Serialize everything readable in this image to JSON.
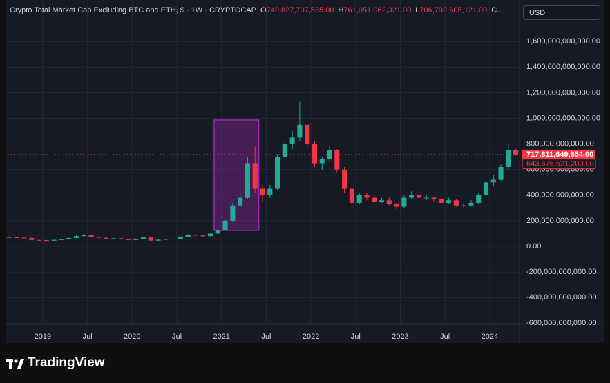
{
  "chart_data": {
    "type": "candlestick",
    "title": "Crypto Total Market Cap Excluding BTC and ETH, $ · 1W · CRYPTOCAP",
    "header_ohlc": [
      {
        "key": "O",
        "value": 749827707535,
        "label": "749,827,707,535.00"
      },
      {
        "key": "H",
        "value": 761051062321,
        "label": "761,051,062,321.00"
      },
      {
        "key": "L",
        "value": 706792605121,
        "label": "706,792,605,121.00"
      }
    ],
    "header_truncated": "C...",
    "currency": "USD",
    "x": [
      "2018-08",
      "2018-09",
      "2018-10",
      "2018-11",
      "2018-12",
      "2019-01",
      "2019-02",
      "2019-03",
      "2019-04",
      "2019-05",
      "2019-06",
      "2019-07",
      "2019-08",
      "2019-09",
      "2019-10",
      "2019-11",
      "2019-12",
      "2020-01",
      "2020-02",
      "2020-03",
      "2020-04",
      "2020-05",
      "2020-06",
      "2020-07",
      "2020-08",
      "2020-09",
      "2020-10",
      "2020-11",
      "2020-12",
      "2021-01",
      "2021-02",
      "2021-03",
      "2021-04",
      "2021-05",
      "2021-06",
      "2021-07",
      "2021-08",
      "2021-09",
      "2021-10",
      "2021-11",
      "2021-12",
      "2022-01",
      "2022-02",
      "2022-03",
      "2022-04",
      "2022-05",
      "2022-06",
      "2022-07",
      "2022-08",
      "2022-09",
      "2022-10",
      "2022-11",
      "2022-12",
      "2023-01",
      "2023-02",
      "2023-03",
      "2023-04",
      "2023-05",
      "2023-06",
      "2023-07",
      "2023-08",
      "2023-09",
      "2023-10",
      "2023-11",
      "2023-12",
      "2024-01",
      "2024-02",
      "2024-03",
      "2024-04"
    ],
    "open": [
      72000000000.0,
      70000000000.0,
      68000000000.0,
      65000000000.0,
      50000000000.0,
      48000000000.0,
      45000000000.0,
      50000000000.0,
      55000000000.0,
      65000000000.0,
      80000000000.0,
      90000000000.0,
      75000000000.0,
      68000000000.0,
      60000000000.0,
      62000000000.0,
      55000000000.0,
      50000000000.0,
      60000000000.0,
      70000000000.0,
      45000000000.0,
      52000000000.0,
      58000000000.0,
      60000000000.0,
      75000000000.0,
      90000000000.0,
      85000000000.0,
      80000000000.0,
      100000000000.0,
      125000000000.0,
      200000000000.0,
      320000000000.0,
      380000000000.0,
      650000000000.0,
      450000000000.0,
      400000000000.0,
      450000000000.0,
      700000000000.0,
      800000000000.0,
      850000000000.0,
      950000000000.0,
      800000000000.0,
      650000000000.0,
      680000000000.0,
      750000000000.0,
      600000000000.0,
      450000000000.0,
      340000000000.0,
      400000000000.0,
      380000000000.0,
      350000000000.0,
      360000000000.0,
      330000000000.0,
      310000000000.0,
      380000000000.0,
      400000000000.0,
      380000000000.0,
      380000000000.0,
      370000000000.0,
      340000000000.0,
      360000000000.0,
      320000000000.0,
      320000000000.0,
      340000000000.0,
      400000000000.0,
      500000000000.0,
      520000000000.0,
      620000000000.0,
      749827707535
    ],
    "high": [
      75000000000.0,
      72000000000.0,
      70000000000.0,
      67000000000.0,
      54000000000.0,
      50000000000.0,
      52000000000.0,
      58000000000.0,
      68000000000.0,
      85000000000.0,
      100000000000.0,
      92000000000.0,
      78000000000.0,
      70000000000.0,
      65000000000.0,
      64000000000.0,
      57000000000.0,
      62000000000.0,
      72000000000.0,
      72000000000.0,
      55000000000.0,
      60000000000.0,
      62000000000.0,
      78000000000.0,
      95000000000.0,
      92000000000.0,
      88000000000.0,
      102000000000.0,
      130000000000.0,
      210000000000.0,
      340000000000.0,
      420000000000.0,
      700000000000.0,
      780000000000.0,
      470000000000.0,
      480000000000.0,
      720000000000.0,
      830000000000.0,
      900000000000.0,
      1130000000000.0,
      960000000000.0,
      820000000000.0,
      700000000000.0,
      780000000000.0,
      760000000000.0,
      620000000000.0,
      470000000000.0,
      420000000000.0,
      420000000000.0,
      400000000000.0,
      380000000000.0,
      380000000000.0,
      340000000000.0,
      400000000000.0,
      430000000000.0,
      410000000000.0,
      400000000000.0,
      390000000000.0,
      380000000000.0,
      380000000000.0,
      370000000000.0,
      340000000000.0,
      360000000000.0,
      420000000000.0,
      520000000000.0,
      560000000000.0,
      640000000000.0,
      800000000000.0,
      761051062321
    ],
    "low": [
      68000000000.0,
      66000000000.0,
      62000000000.0,
      48000000000.0,
      45000000000.0,
      42000000000.0,
      44000000000.0,
      49000000000.0,
      54000000000.0,
      63000000000.0,
      78000000000.0,
      72000000000.0,
      65000000000.0,
      58000000000.0,
      58000000000.0,
      52000000000.0,
      48000000000.0,
      48000000000.0,
      58000000000.0,
      40000000000.0,
      42000000000.0,
      50000000000.0,
      56000000000.0,
      58000000000.0,
      74000000000.0,
      80000000000.0,
      76000000000.0,
      78000000000.0,
      98000000000.0,
      122000000000.0,
      190000000000.0,
      300000000000.0,
      370000000000.0,
      420000000000.0,
      350000000000.0,
      380000000000.0,
      440000000000.0,
      680000000000.0,
      760000000000.0,
      820000000000.0,
      760000000000.0,
      620000000000.0,
      600000000000.0,
      660000000000.0,
      580000000000.0,
      420000000000.0,
      320000000000.0,
      330000000000.0,
      360000000000.0,
      340000000000.0,
      340000000000.0,
      320000000000.0,
      290000000000.0,
      300000000000.0,
      370000000000.0,
      360000000000.0,
      360000000000.0,
      350000000000.0,
      330000000000.0,
      330000000000.0,
      310000000000.0,
      300000000000.0,
      310000000000.0,
      330000000000.0,
      390000000000.0,
      470000000000.0,
      510000000000.0,
      600000000000.0,
      706792605121
    ],
    "close": [
      70000000000.0,
      68000000000.0,
      65000000000.0,
      50000000000.0,
      48000000000.0,
      45000000000.0,
      50000000000.0,
      55000000000.0,
      65000000000.0,
      80000000000.0,
      90000000000.0,
      75000000000.0,
      68000000000.0,
      60000000000.0,
      62000000000.0,
      55000000000.0,
      50000000000.0,
      60000000000.0,
      70000000000.0,
      45000000000.0,
      52000000000.0,
      58000000000.0,
      60000000000.0,
      75000000000.0,
      90000000000.0,
      85000000000.0,
      80000000000.0,
      100000000000.0,
      125000000000.0,
      200000000000.0,
      320000000000.0,
      380000000000.0,
      650000000000.0,
      450000000000.0,
      400000000000.0,
      450000000000.0,
      700000000000.0,
      800000000000.0,
      850000000000.0,
      950000000000.0,
      800000000000.0,
      650000000000.0,
      680000000000.0,
      750000000000.0,
      600000000000.0,
      450000000000.0,
      340000000000.0,
      400000000000.0,
      380000000000.0,
      350000000000.0,
      360000000000.0,
      330000000000.0,
      310000000000.0,
      380000000000.0,
      400000000000.0,
      380000000000.0,
      380000000000.0,
      370000000000.0,
      340000000000.0,
      360000000000.0,
      320000000000.0,
      320000000000.0,
      340000000000.0,
      400000000000.0,
      500000000000.0,
      520000000000.0,
      620000000000.0,
      750000000000.0,
      717811649854
    ],
    "up_color": "#22ab94",
    "down_color": "#f23645",
    "xlim": [
      "2018-08",
      "2024-05"
    ],
    "xticks": [
      {
        "value": "2019-01",
        "label": "2019"
      },
      {
        "value": "2019-07",
        "label": "Jul"
      },
      {
        "value": "2020-01",
        "label": "2020"
      },
      {
        "value": "2020-07",
        "label": "Jul"
      },
      {
        "value": "2021-01",
        "label": "2021"
      },
      {
        "value": "2021-07",
        "label": "Jul"
      },
      {
        "value": "2022-01",
        "label": "2022"
      },
      {
        "value": "2022-07",
        "label": "Jul"
      },
      {
        "value": "2023-01",
        "label": "2023"
      },
      {
        "value": "2023-07",
        "label": "Jul"
      },
      {
        "value": "2024-01",
        "label": "2024"
      }
    ],
    "ylim": [
      -609000000000.0,
      1763000000000.0
    ],
    "yticks": [
      {
        "value": 1600000000000.0,
        "label": "1,600,000,000,000.00"
      },
      {
        "value": 1400000000000.0,
        "label": "1,400,000,000,000.00"
      },
      {
        "value": 1200000000000.0,
        "label": "1,200,000,000,000.00"
      },
      {
        "value": 1000000000000.0,
        "label": "1,000,000,000,000.00"
      },
      {
        "value": 800000000000.0,
        "label": "800,000,000,000.00"
      },
      {
        "value": 600000000000.0,
        "label": "600,000,000,000.00"
      },
      {
        "value": 400000000000.0,
        "label": "400,000,000,000.00"
      },
      {
        "value": 200000000000.0,
        "label": "200,000,000,000.00"
      },
      {
        "value": 0,
        "label": "0.00"
      },
      {
        "value": -200000000000.0,
        "label": "-200,000,000,000.00"
      },
      {
        "value": -400000000000.0,
        "label": "-400,000,000,000.00"
      },
      {
        "value": -600000000000.0,
        "label": "-600,000,000,000.00"
      }
    ],
    "grid": true,
    "price_labels": [
      {
        "value": 717811649854,
        "label": "717,811,649,854.00",
        "style": "filled"
      },
      {
        "value": 643676521200,
        "label": "643,676,521,200.00",
        "style": "outlined"
      }
    ],
    "highlight": {
      "x": [
        "2020-12",
        "2021-06"
      ],
      "y": [
        125000000000.0,
        987000000000.0
      ],
      "color": "#9c27b0"
    }
  },
  "footer": {
    "brand": "TradingView"
  }
}
